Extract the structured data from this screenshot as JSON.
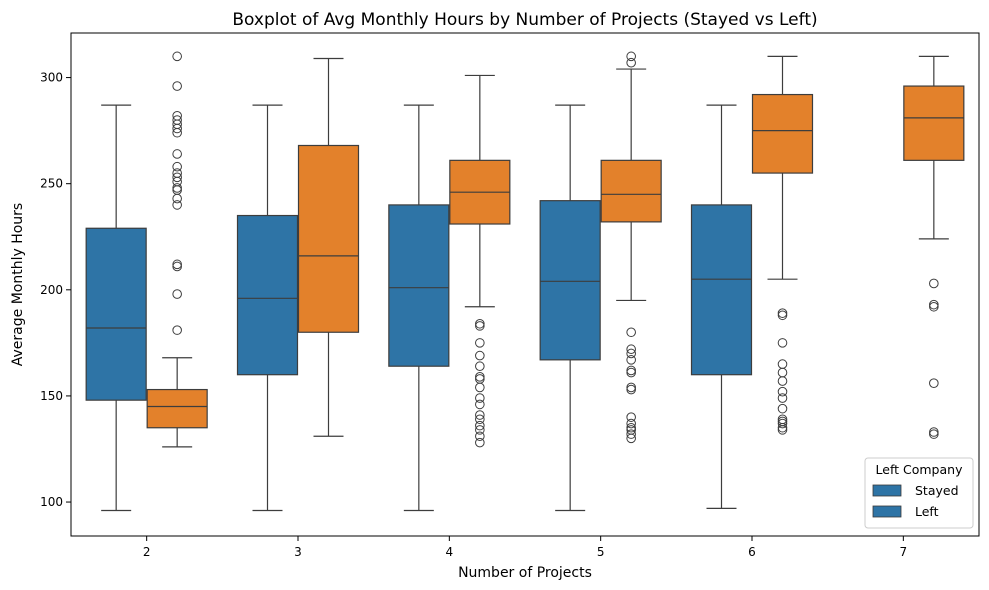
{
  "chart_data": {
    "type": "box",
    "title": "Boxplot of Avg Monthly Hours by Number of Projects (Stayed vs Left)",
    "xlabel": "Number of Projects",
    "ylabel": "Average Monthly Hours",
    "categories": [
      "2",
      "3",
      "4",
      "5",
      "6",
      "7"
    ],
    "ylim": [
      84,
      321
    ],
    "yticks": [
      100,
      150,
      200,
      250,
      300
    ],
    "legend": {
      "title": "Left Company",
      "position": "lower-right",
      "entries": [
        "Stayed",
        "Left"
      ],
      "swatch_color": "#2e74a6"
    },
    "series": [
      {
        "name": "Stayed",
        "color": "#2e74a6",
        "boxes": [
          {
            "category": "2",
            "whislo": 96,
            "q1": 148,
            "med": 182,
            "q3": 229,
            "whishi": 287,
            "fliers": []
          },
          {
            "category": "3",
            "whislo": 96,
            "q1": 160,
            "med": 196,
            "q3": 235,
            "whishi": 287,
            "fliers": []
          },
          {
            "category": "4",
            "whislo": 96,
            "q1": 164,
            "med": 201,
            "q3": 240,
            "whishi": 287,
            "fliers": []
          },
          {
            "category": "5",
            "whislo": 96,
            "q1": 167,
            "med": 204,
            "q3": 242,
            "whishi": 287,
            "fliers": []
          },
          {
            "category": "6",
            "whislo": 97,
            "q1": 160,
            "med": 205,
            "q3": 240,
            "whishi": 287,
            "fliers": []
          }
        ]
      },
      {
        "name": "Left",
        "color": "#e3812b",
        "boxes": [
          {
            "category": "2",
            "whislo": 126,
            "q1": 135,
            "med": 145,
            "q3": 153,
            "whishi": 168,
            "fliers": [
              181,
              198,
              211,
              212,
              240,
              243,
              247,
              248,
              251,
              253,
              255,
              258,
              264,
              274,
              276,
              278,
              280,
              282,
              296,
              310
            ]
          },
          {
            "category": "3",
            "whislo": 131,
            "q1": 180,
            "med": 216,
            "q3": 268,
            "whishi": 309,
            "fliers": []
          },
          {
            "category": "4",
            "whislo": 192,
            "q1": 231,
            "med": 246,
            "q3": 261,
            "whishi": 301,
            "fliers": [
              128,
              131,
              134,
              136,
              139,
              141,
              146,
              149,
              154,
              158,
              159,
              164,
              169,
              175,
              183,
              184
            ]
          },
          {
            "category": "5",
            "whislo": 195,
            "q1": 232,
            "med": 245,
            "q3": 261,
            "whishi": 304,
            "fliers": [
              130,
              132,
              134,
              135,
              137,
              140,
              153,
              154,
              161,
              162,
              167,
              170,
              172,
              180,
              307,
              310
            ]
          },
          {
            "category": "6",
            "whislo": 205,
            "q1": 255,
            "med": 275,
            "q3": 292,
            "whishi": 310,
            "fliers": [
              134,
              135,
              137,
              138,
              139,
              144,
              149,
              152,
              157,
              161,
              165,
              175,
              188,
              189
            ]
          },
          {
            "category": "7",
            "whislo": 224,
            "q1": 261,
            "med": 281,
            "q3": 296,
            "whishi": 310,
            "fliers": [
              132,
              133,
              156,
              192,
              193,
              203
            ]
          }
        ]
      }
    ]
  }
}
